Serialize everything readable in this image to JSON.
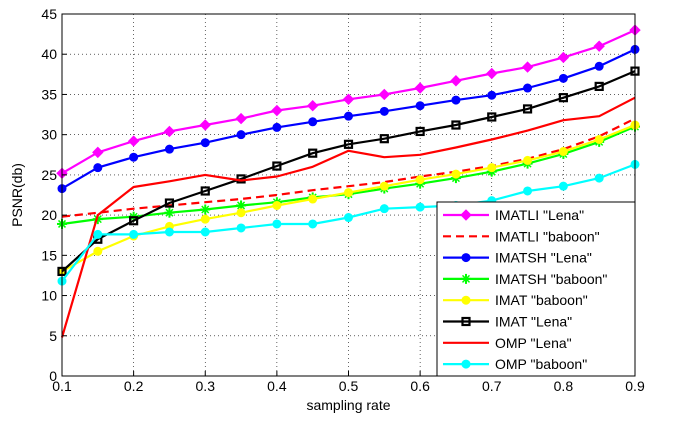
{
  "chart_data": {
    "type": "line",
    "xlabel": "sampling rate",
    "ylabel": "PSNR(db)",
    "xlim": [
      0.1,
      0.9
    ],
    "ylim": [
      0,
      45
    ],
    "xticks": [
      "0.1",
      "0.2",
      "0.3",
      "0.4",
      "0.5",
      "0.6",
      "0.7",
      "0.8",
      "0.9"
    ],
    "yticks": [
      "0",
      "5",
      "10",
      "15",
      "20",
      "25",
      "30",
      "35",
      "40",
      "45"
    ],
    "grid": true,
    "legend_position": "bottom-right",
    "x": [
      0.1,
      0.15,
      0.2,
      0.25,
      0.3,
      0.35,
      0.4,
      0.45,
      0.5,
      0.55,
      0.6,
      0.65,
      0.7,
      0.75,
      0.8,
      0.85,
      0.9
    ],
    "series": [
      {
        "name": "IMATLI \"Lena\"",
        "color": "#ff00ff",
        "style": "solid",
        "marker": "diamond",
        "values": [
          25.2,
          27.8,
          29.2,
          30.4,
          31.2,
          32.0,
          33.0,
          33.6,
          34.4,
          35.0,
          35.8,
          36.7,
          37.6,
          38.4,
          39.6,
          41.0,
          43.0
        ]
      },
      {
        "name": "IMATLI \"baboon\"",
        "color": "#ff0000",
        "style": "dashed",
        "marker": "none",
        "values": [
          19.8,
          20.3,
          20.8,
          21.2,
          21.6,
          22.0,
          22.5,
          23.1,
          23.6,
          24.1,
          24.8,
          25.4,
          26.1,
          27.0,
          28.2,
          29.8,
          32.0
        ]
      },
      {
        "name": "IMATSH \"Lena\"",
        "color": "#0000ff",
        "style": "solid",
        "marker": "circle",
        "values": [
          23.3,
          25.9,
          27.2,
          28.2,
          29.0,
          30.0,
          30.9,
          31.6,
          32.3,
          32.9,
          33.6,
          34.3,
          34.9,
          35.8,
          37.0,
          38.5,
          40.6
        ]
      },
      {
        "name": "IMATSH \"baboon\"",
        "color": "#00ff00",
        "style": "solid",
        "marker": "star",
        "values": [
          18.9,
          19.5,
          19.8,
          20.3,
          20.7,
          21.2,
          21.6,
          22.2,
          22.6,
          23.3,
          23.9,
          24.6,
          25.4,
          26.4,
          27.6,
          29.1,
          31.0
        ]
      },
      {
        "name": "IMAT \"baboon\"",
        "color": "#ffff00",
        "style": "solid",
        "marker": "circle",
        "values": [
          13.0,
          15.5,
          17.4,
          18.6,
          19.5,
          20.3,
          21.2,
          22.0,
          22.8,
          23.6,
          24.4,
          25.1,
          25.9,
          26.8,
          27.9,
          29.4,
          31.2
        ]
      },
      {
        "name": "IMAT \"Lena\"",
        "color": "#000000",
        "style": "solid",
        "marker": "square",
        "values": [
          13.0,
          17.0,
          19.3,
          21.5,
          23.0,
          24.5,
          26.1,
          27.7,
          28.8,
          29.5,
          30.4,
          31.2,
          32.2,
          33.2,
          34.6,
          36.0,
          37.9
        ]
      },
      {
        "name": "OMP \"Lena\"",
        "color": "#ff0000",
        "style": "solid",
        "marker": "none",
        "values": [
          4.8,
          20.0,
          23.5,
          24.2,
          25.0,
          24.3,
          24.8,
          26.0,
          28.0,
          27.2,
          27.5,
          28.4,
          29.4,
          30.5,
          31.8,
          32.3,
          34.6
        ]
      },
      {
        "name": "OMP \"baboon\"",
        "color": "#00ffff",
        "style": "solid",
        "marker": "circle",
        "values": [
          11.8,
          17.6,
          17.6,
          17.9,
          17.9,
          18.4,
          18.9,
          18.9,
          19.7,
          20.8,
          21.0,
          21.2,
          21.8,
          23.0,
          23.6,
          24.6,
          26.3
        ]
      }
    ]
  }
}
